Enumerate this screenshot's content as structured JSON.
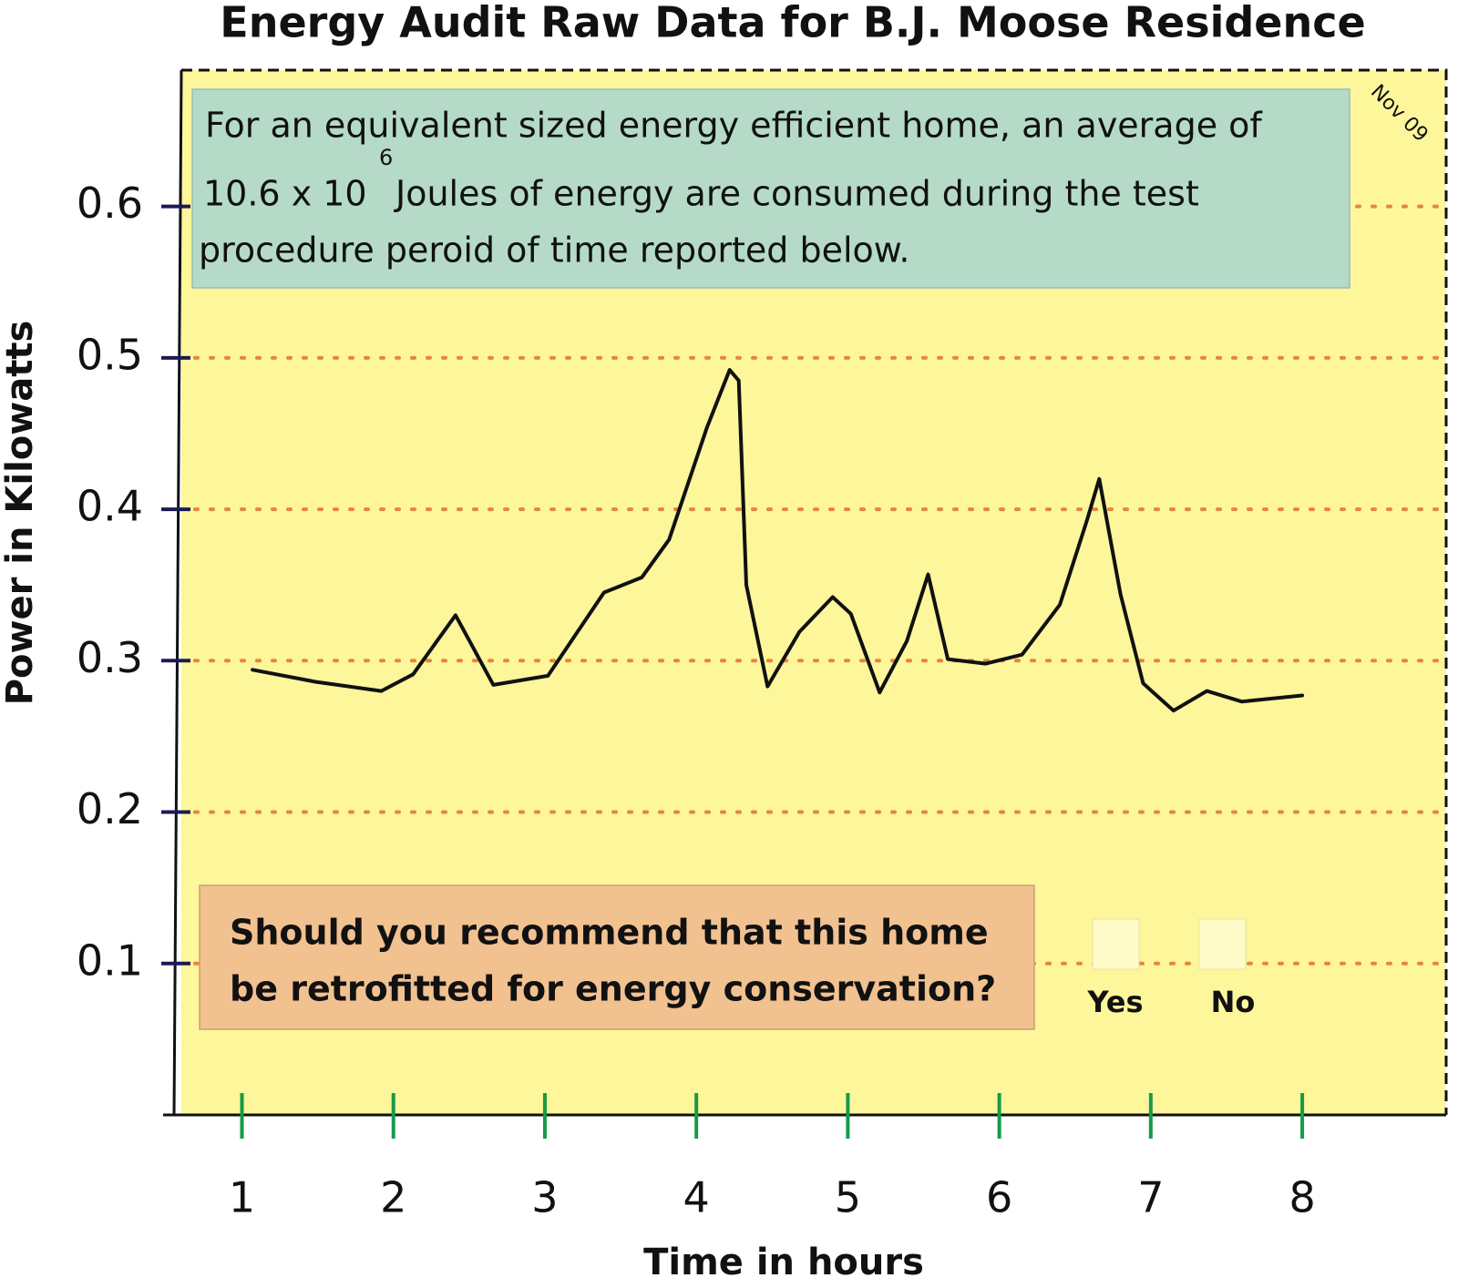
{
  "chart_data": {
    "type": "line",
    "title": "Energy Audit Raw Data for B.J. Moose Residence",
    "x_label": "Time in hours",
    "y_label": "Power in Kilowatts",
    "date": "Nov 09",
    "note": [
      "For an equivalent sized energy efficient home, an average of",
      "10.6 x 10",
      "6",
      "Joules of energy are consumed during the test",
      "procedure peroid of time reported below."
    ],
    "question": [
      "Should you recommend that this home",
      "be retrofitted for energy conservation?"
    ],
    "options": [
      "Yes",
      "No"
    ],
    "x": [
      1.07,
      1.49,
      1.92,
      2.13,
      2.41,
      2.66,
      3.02,
      3.39,
      3.64,
      3.82,
      4.07,
      4.22,
      4.28,
      4.33,
      4.47,
      4.68,
      4.9,
      5.02,
      5.21,
      5.39,
      5.53,
      5.66,
      5.91,
      6.15,
      6.4,
      6.58,
      6.66,
      6.8,
      6.95,
      7.15,
      7.37,
      7.6,
      8.0
    ],
    "values": [
      0.294,
      0.286,
      0.28,
      0.291,
      0.33,
      0.284,
      0.29,
      0.345,
      0.355,
      0.38,
      0.454,
      0.492,
      0.485,
      0.35,
      0.283,
      0.319,
      0.342,
      0.331,
      0.279,
      0.313,
      0.357,
      0.301,
      0.298,
      0.304,
      0.337,
      0.393,
      0.42,
      0.344,
      0.285,
      0.267,
      0.28,
      0.273,
      0.277
    ],
    "color": "#111111",
    "xlim": [
      0.6,
      8.95
    ],
    "ylim": [
      0,
      0.69
    ],
    "xticks": [
      1,
      2,
      3,
      4,
      5,
      6,
      7,
      8
    ],
    "yticks": [
      0.1,
      0.2,
      0.3,
      0.4,
      0.5,
      0.6
    ],
    "grid": true
  }
}
